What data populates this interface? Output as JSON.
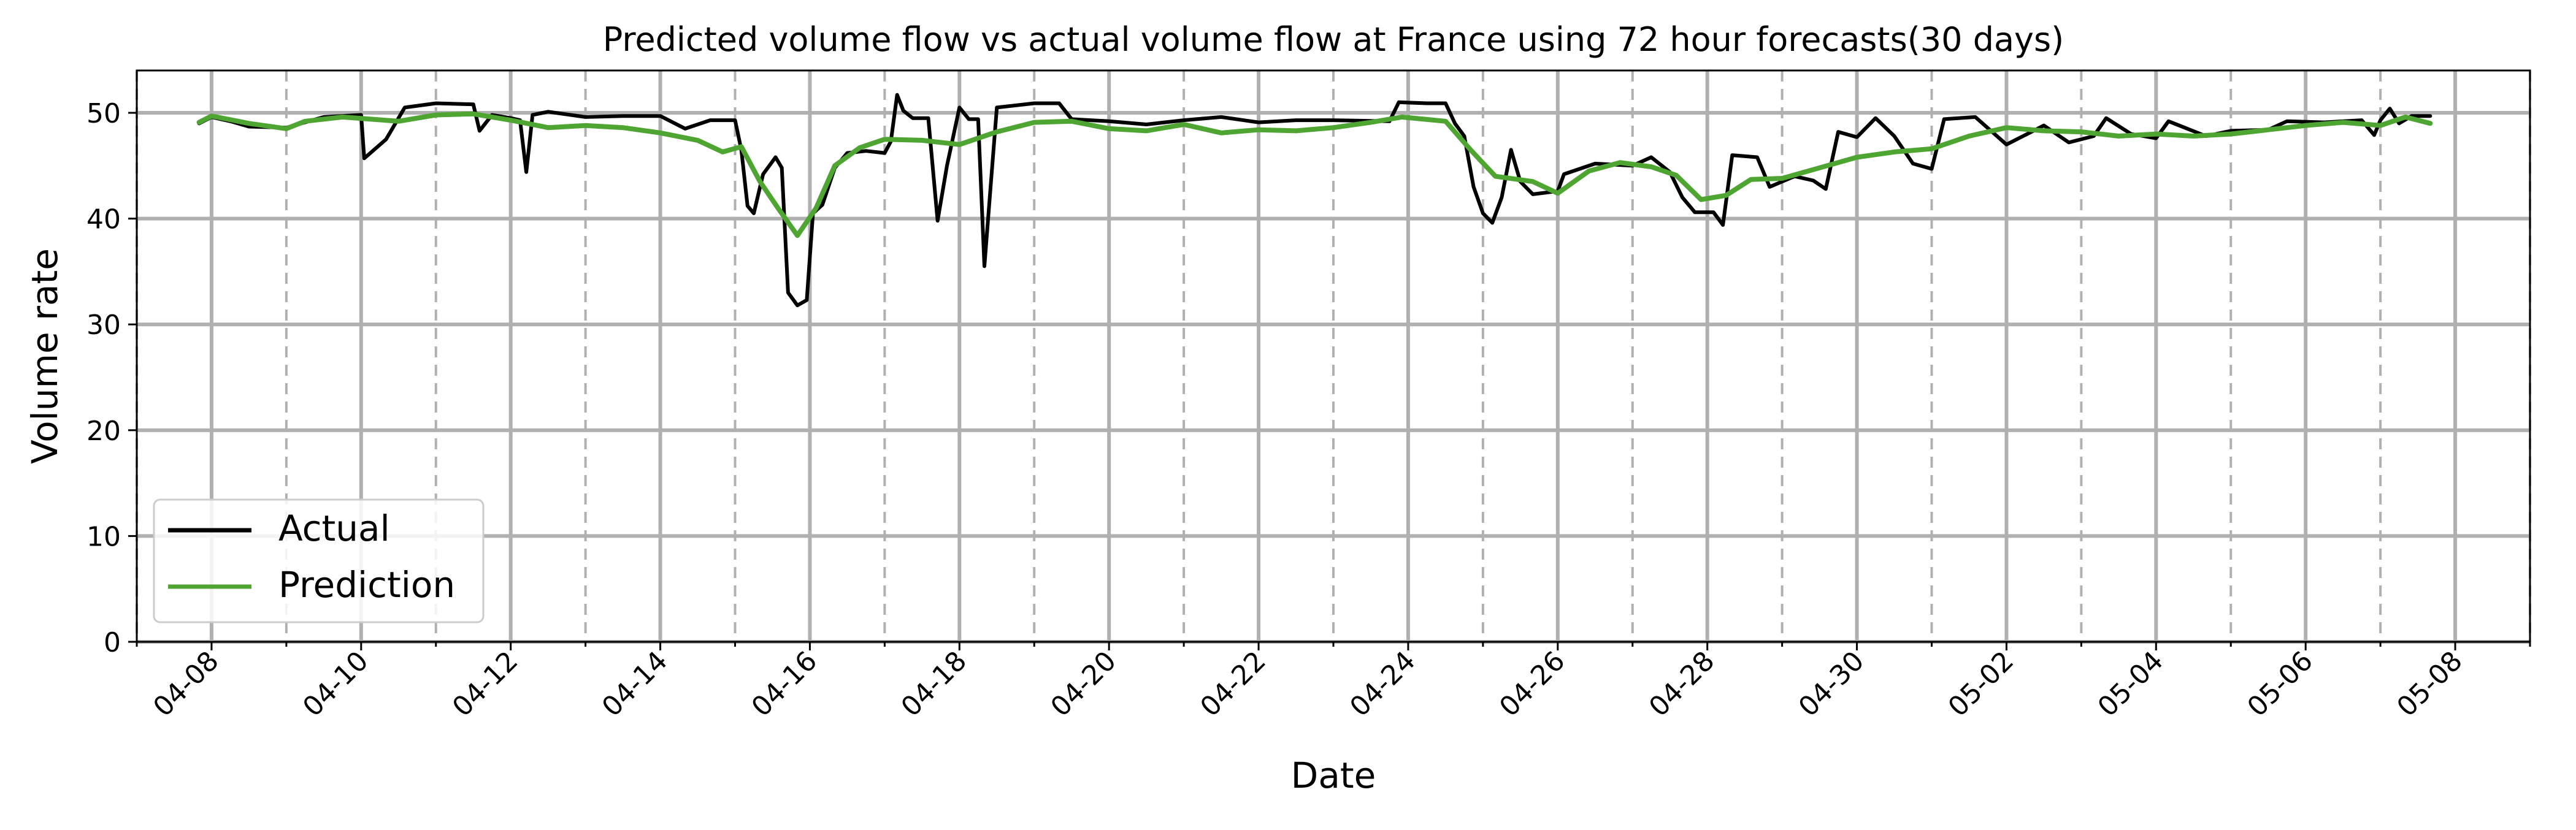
{
  "chart_data": {
    "type": "line",
    "title": "Predicted volume flow vs actual volume flow at France using 72 hour forecasts(30 days)",
    "xlabel": "Date",
    "ylabel": "Volume rate",
    "xlim": [
      "2025-04-07",
      "2025-05-09"
    ],
    "ylim": [
      0,
      54
    ],
    "x_tick_labels": [
      "04-08",
      "04-10",
      "04-12",
      "04-14",
      "04-16",
      "04-18",
      "04-20",
      "04-22",
      "04-24",
      "04-26",
      "04-28",
      "04-30",
      "05-02",
      "05-04",
      "05-06",
      "05-08"
    ],
    "x_ticks": [
      "2025-04-08",
      "2025-04-10",
      "2025-04-12",
      "2025-04-14",
      "2025-04-16",
      "2025-04-18",
      "2025-04-20",
      "2025-04-22",
      "2025-04-24",
      "2025-04-26",
      "2025-04-28",
      "2025-04-30",
      "2025-05-02",
      "2025-05-04",
      "2025-05-06",
      "2025-05-08"
    ],
    "y_ticks": [
      0,
      10,
      20,
      30,
      40,
      50
    ],
    "grid": "major solid, minor dashed (daily)",
    "legend_position": "lower-left",
    "colors": {
      "Actual": "#000000",
      "Prediction": "#4fa532",
      "grid": "#b0b0b0"
    },
    "series": [
      {
        "name": "Actual",
        "points": [
          [
            "2025-04-07 20:00",
            49.0
          ],
          [
            "2025-04-08 00:00",
            49.6
          ],
          [
            "2025-04-08 06:00",
            49.2
          ],
          [
            "2025-04-08 12:00",
            48.7
          ],
          [
            "2025-04-09 00:00",
            48.6
          ],
          [
            "2025-04-09 12:00",
            49.6
          ],
          [
            "2025-04-10 00:00",
            49.8
          ],
          [
            "2025-04-10 01:00",
            45.7
          ],
          [
            "2025-04-10 08:00",
            47.5
          ],
          [
            "2025-04-10 14:00",
            50.5
          ],
          [
            "2025-04-11 00:00",
            50.9
          ],
          [
            "2025-04-11 12:00",
            50.8
          ],
          [
            "2025-04-11 14:00",
            48.3
          ],
          [
            "2025-04-11 18:00",
            49.8
          ],
          [
            "2025-04-12 00:00",
            49.5
          ],
          [
            "2025-04-12 03:00",
            49.3
          ],
          [
            "2025-04-12 05:00",
            44.4
          ],
          [
            "2025-04-12 07:00",
            49.8
          ],
          [
            "2025-04-12 12:00",
            50.1
          ],
          [
            "2025-04-13 00:00",
            49.6
          ],
          [
            "2025-04-13 12:00",
            49.7
          ],
          [
            "2025-04-14 00:00",
            49.7
          ],
          [
            "2025-04-14 08:00",
            48.5
          ],
          [
            "2025-04-14 16:00",
            49.3
          ],
          [
            "2025-04-15 00:00",
            49.3
          ],
          [
            "2025-04-15 02:00",
            46.5
          ],
          [
            "2025-04-15 04:00",
            41.2
          ],
          [
            "2025-04-15 06:00",
            40.5
          ],
          [
            "2025-04-15 09:00",
            44.2
          ],
          [
            "2025-04-15 13:00",
            45.8
          ],
          [
            "2025-04-15 15:00",
            44.8
          ],
          [
            "2025-04-15 17:00",
            33.0
          ],
          [
            "2025-04-15 20:00",
            31.8
          ],
          [
            "2025-04-15 23:00",
            32.3
          ],
          [
            "2025-04-16 01:00",
            40.5
          ],
          [
            "2025-04-16 04:00",
            41.3
          ],
          [
            "2025-04-16 08:00",
            44.8
          ],
          [
            "2025-04-16 12:00",
            46.2
          ],
          [
            "2025-04-16 18:00",
            46.4
          ],
          [
            "2025-04-17 00:00",
            46.2
          ],
          [
            "2025-04-17 02:00",
            47.3
          ],
          [
            "2025-04-17 04:00",
            51.7
          ],
          [
            "2025-04-17 06:00",
            50.2
          ],
          [
            "2025-04-17 09:00",
            49.5
          ],
          [
            "2025-04-17 14:00",
            49.5
          ],
          [
            "2025-04-17 17:00",
            39.8
          ],
          [
            "2025-04-17 20:00",
            45.0
          ],
          [
            "2025-04-18 00:00",
            50.5
          ],
          [
            "2025-04-18 03:00",
            49.4
          ],
          [
            "2025-04-18 06:00",
            49.4
          ],
          [
            "2025-04-18 08:00",
            35.5
          ],
          [
            "2025-04-18 10:00",
            43.0
          ],
          [
            "2025-04-18 12:00",
            50.5
          ],
          [
            "2025-04-19 00:00",
            50.9
          ],
          [
            "2025-04-19 08:00",
            50.9
          ],
          [
            "2025-04-19 12:00",
            49.4
          ],
          [
            "2025-04-20 00:00",
            49.2
          ],
          [
            "2025-04-20 12:00",
            48.9
          ],
          [
            "2025-04-21 00:00",
            49.3
          ],
          [
            "2025-04-21 12:00",
            49.6
          ],
          [
            "2025-04-22 00:00",
            49.1
          ],
          [
            "2025-04-22 12:00",
            49.3
          ],
          [
            "2025-04-23 00:00",
            49.3
          ],
          [
            "2025-04-23 18:00",
            49.2
          ],
          [
            "2025-04-23 21:00",
            51.0
          ],
          [
            "2025-04-24 06:00",
            50.9
          ],
          [
            "2025-04-24 12:00",
            50.9
          ],
          [
            "2025-04-24 15:00",
            49.0
          ],
          [
            "2025-04-24 18:00",
            47.8
          ],
          [
            "2025-04-24 21:00",
            43.0
          ],
          [
            "2025-04-25 00:00",
            40.5
          ],
          [
            "2025-04-25 03:00",
            39.6
          ],
          [
            "2025-04-25 06:00",
            42.0
          ],
          [
            "2025-04-25 09:00",
            46.5
          ],
          [
            "2025-04-25 12:00",
            43.5
          ],
          [
            "2025-04-25 16:00",
            42.3
          ],
          [
            "2025-04-26 00:00",
            42.6
          ],
          [
            "2025-04-26 02:00",
            44.2
          ],
          [
            "2025-04-26 12:00",
            45.2
          ],
          [
            "2025-04-27 00:00",
            45.0
          ],
          [
            "2025-04-27 06:00",
            45.8
          ],
          [
            "2025-04-27 12:00",
            44.4
          ],
          [
            "2025-04-27 16:00",
            42.0
          ],
          [
            "2025-04-27 20:00",
            40.6
          ],
          [
            "2025-04-28 02:00",
            40.6
          ],
          [
            "2025-04-28 05:00",
            39.4
          ],
          [
            "2025-04-28 08:00",
            46.0
          ],
          [
            "2025-04-28 16:00",
            45.8
          ],
          [
            "2025-04-28 20:00",
            43.0
          ],
          [
            "2025-04-29 04:00",
            44.0
          ],
          [
            "2025-04-29 10:00",
            43.6
          ],
          [
            "2025-04-29 14:00",
            42.8
          ],
          [
            "2025-04-29 18:00",
            48.2
          ],
          [
            "2025-04-30 00:00",
            47.7
          ],
          [
            "2025-04-30 06:00",
            49.5
          ],
          [
            "2025-04-30 12:00",
            47.8
          ],
          [
            "2025-04-30 18:00",
            45.2
          ],
          [
            "2025-05-01 00:00",
            44.7
          ],
          [
            "2025-05-01 04:00",
            49.4
          ],
          [
            "2025-05-01 14:00",
            49.6
          ],
          [
            "2025-05-02 00:00",
            47.0
          ],
          [
            "2025-05-02 12:00",
            48.8
          ],
          [
            "2025-05-02 20:00",
            47.2
          ],
          [
            "2025-05-03 04:00",
            47.8
          ],
          [
            "2025-05-03 08:00",
            49.5
          ],
          [
            "2025-05-03 16:00",
            48.0
          ],
          [
            "2025-05-04 00:00",
            47.6
          ],
          [
            "2025-05-04 04:00",
            49.2
          ],
          [
            "2025-05-04 16:00",
            47.8
          ],
          [
            "2025-05-05 00:00",
            48.3
          ],
          [
            "2025-05-05 12:00",
            48.4
          ],
          [
            "2025-05-05 18:00",
            49.2
          ],
          [
            "2025-05-06 06:00",
            49.1
          ],
          [
            "2025-05-06 18:00",
            49.3
          ],
          [
            "2025-05-06 22:00",
            47.9
          ],
          [
            "2025-05-07 00:00",
            49.3
          ],
          [
            "2025-05-07 03:00",
            50.4
          ],
          [
            "2025-05-07 06:00",
            49.0
          ],
          [
            "2025-05-07 10:00",
            49.7
          ],
          [
            "2025-05-07 16:00",
            49.7
          ]
        ]
      },
      {
        "name": "Prediction",
        "points": [
          [
            "2025-04-07 20:00",
            49.1
          ],
          [
            "2025-04-08 00:00",
            49.7
          ],
          [
            "2025-04-08 12:00",
            49.0
          ],
          [
            "2025-04-09 00:00",
            48.5
          ],
          [
            "2025-04-09 06:00",
            49.2
          ],
          [
            "2025-04-09 18:00",
            49.6
          ],
          [
            "2025-04-10 12:00",
            49.2
          ],
          [
            "2025-04-11 00:00",
            49.8
          ],
          [
            "2025-04-11 12:00",
            49.9
          ],
          [
            "2025-04-12 00:00",
            49.3
          ],
          [
            "2025-04-12 12:00",
            48.6
          ],
          [
            "2025-04-13 00:00",
            48.8
          ],
          [
            "2025-04-13 12:00",
            48.6
          ],
          [
            "2025-04-14 00:00",
            48.1
          ],
          [
            "2025-04-14 12:00",
            47.4
          ],
          [
            "2025-04-14 20:00",
            46.3
          ],
          [
            "2025-04-15 02:00",
            46.8
          ],
          [
            "2025-04-15 08:00",
            43.5
          ],
          [
            "2025-04-15 14:00",
            40.9
          ],
          [
            "2025-04-15 20:00",
            38.4
          ],
          [
            "2025-04-16 02:00",
            41.0
          ],
          [
            "2025-04-16 08:00",
            45.0
          ],
          [
            "2025-04-16 16:00",
            46.7
          ],
          [
            "2025-04-17 00:00",
            47.5
          ],
          [
            "2025-04-17 12:00",
            47.4
          ],
          [
            "2025-04-18 00:00",
            47.0
          ],
          [
            "2025-04-18 12:00",
            48.2
          ],
          [
            "2025-04-19 00:00",
            49.1
          ],
          [
            "2025-04-19 12:00",
            49.2
          ],
          [
            "2025-04-20 00:00",
            48.5
          ],
          [
            "2025-04-20 12:00",
            48.3
          ],
          [
            "2025-04-21 00:00",
            48.9
          ],
          [
            "2025-04-21 12:00",
            48.1
          ],
          [
            "2025-04-22 00:00",
            48.4
          ],
          [
            "2025-04-22 12:00",
            48.3
          ],
          [
            "2025-04-23 00:00",
            48.6
          ],
          [
            "2025-04-23 12:00",
            49.1
          ],
          [
            "2025-04-23 22:00",
            49.6
          ],
          [
            "2025-04-24 12:00",
            49.2
          ],
          [
            "2025-04-24 20:00",
            46.5
          ],
          [
            "2025-04-25 04:00",
            44.0
          ],
          [
            "2025-04-25 16:00",
            43.5
          ],
          [
            "2025-04-26 00:00",
            42.4
          ],
          [
            "2025-04-26 10:00",
            44.5
          ],
          [
            "2025-04-26 20:00",
            45.3
          ],
          [
            "2025-04-27 06:00",
            44.9
          ],
          [
            "2025-04-27 14:00",
            44.1
          ],
          [
            "2025-04-27 22:00",
            41.8
          ],
          [
            "2025-04-28 06:00",
            42.2
          ],
          [
            "2025-04-28 14:00",
            43.7
          ],
          [
            "2025-04-29 00:00",
            43.8
          ],
          [
            "2025-04-29 12:00",
            44.8
          ],
          [
            "2025-04-30 00:00",
            45.8
          ],
          [
            "2025-04-30 12:00",
            46.3
          ],
          [
            "2025-05-01 00:00",
            46.6
          ],
          [
            "2025-05-01 12:00",
            47.8
          ],
          [
            "2025-05-02 00:00",
            48.6
          ],
          [
            "2025-05-02 12:00",
            48.3
          ],
          [
            "2025-05-03 00:00",
            48.2
          ],
          [
            "2025-05-03 12:00",
            47.8
          ],
          [
            "2025-05-04 00:00",
            48.0
          ],
          [
            "2025-05-04 12:00",
            47.8
          ],
          [
            "2025-05-05 00:00",
            48.0
          ],
          [
            "2025-05-05 12:00",
            48.4
          ],
          [
            "2025-05-06 00:00",
            48.8
          ],
          [
            "2025-05-06 12:00",
            49.1
          ],
          [
            "2025-05-07 00:00",
            48.8
          ],
          [
            "2025-05-07 08:00",
            49.6
          ],
          [
            "2025-05-07 16:00",
            49.0
          ]
        ]
      }
    ]
  }
}
